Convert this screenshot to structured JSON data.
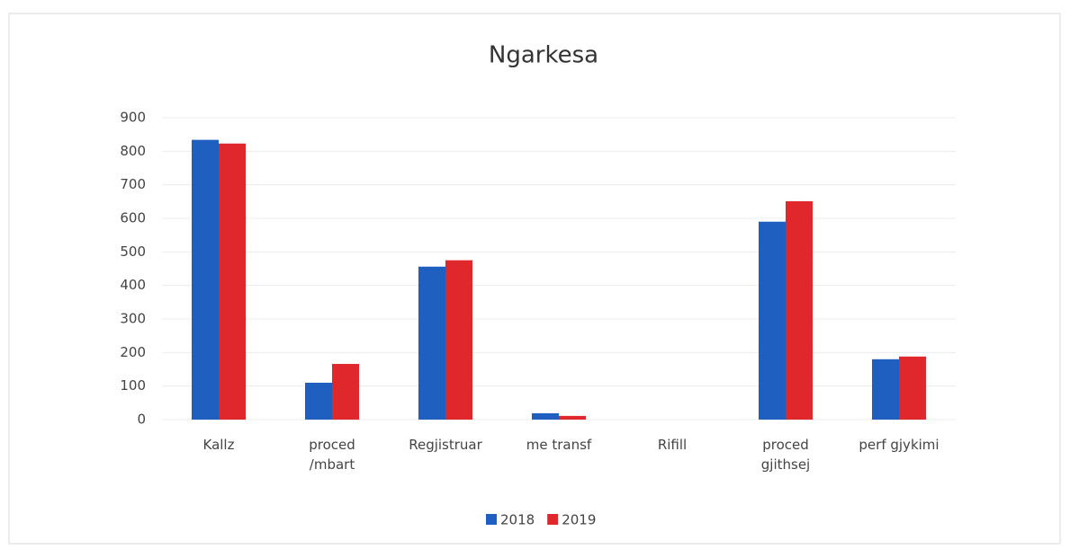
{
  "chart_data": {
    "type": "bar",
    "title": "Ngarkesa",
    "categories": [
      "Kallz",
      "proced\n/mbart",
      "Regjistruar",
      "me transf",
      "Rifill",
      "proced\ngjithsej",
      "perf gjykimi"
    ],
    "series": [
      {
        "name": "2018",
        "color": "#1f5fbf",
        "values": [
          834,
          110,
          456,
          19,
          0,
          590,
          180
        ]
      },
      {
        "name": "2019",
        "color": "#e0282c",
        "values": [
          823,
          166,
          475,
          11,
          0,
          651,
          188
        ]
      }
    ],
    "ylim": [
      0,
      900
    ],
    "yticks": [
      0,
      100,
      200,
      300,
      400,
      500,
      600,
      700,
      800,
      900
    ],
    "grid": true,
    "legend": "bottom"
  }
}
